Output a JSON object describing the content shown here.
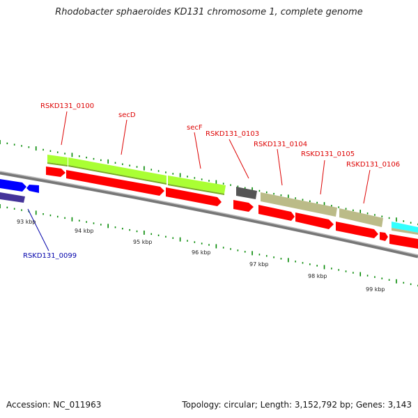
{
  "title": "Rhodobacter sphaeroides KD131 chromosome 1, complete genome",
  "accession": "Accession: NC_011963",
  "summary": "Topology: circular; Length: 3,152,792 bp; Genes: 3,143",
  "ticks": [
    {
      "label": "93 kbp"
    },
    {
      "label": "94 kbp"
    },
    {
      "label": "95 kbp"
    },
    {
      "label": "96 kbp"
    },
    {
      "label": "97 kbp"
    },
    {
      "label": "98 kbp"
    },
    {
      "label": "99 kbp"
    }
  ],
  "gene_labels": [
    {
      "id": "rskd131-0100",
      "text": "RSKD131_0100",
      "color": "#dd0000"
    },
    {
      "id": "secd",
      "text": "secD",
      "color": "#dd0000"
    },
    {
      "id": "secf",
      "text": "secF",
      "color": "#dd0000"
    },
    {
      "id": "rskd131-0103",
      "text": "RSKD131_0103",
      "color": "#dd0000"
    },
    {
      "id": "rskd131-0104",
      "text": "RSKD131_0104",
      "color": "#dd0000"
    },
    {
      "id": "rskd131-0105",
      "text": "RSKD131_0105",
      "color": "#dd0000"
    },
    {
      "id": "rskd131-0106",
      "text": "RSKD131_0106",
      "color": "#dd0000"
    },
    {
      "id": "rskd131-0099",
      "text": "RSKD131_0099",
      "color": "#0000aa"
    }
  ],
  "colors": {
    "backbone": "#888888",
    "cds_strand": "#ff0000",
    "secdf": "#aaff33",
    "misc": "#bbbb88",
    "trna": "#555555",
    "rskd0099": "#0000ff",
    "rskd0099_feature": "#443399",
    "rskd_next": "#33ffff",
    "tick": "#00aa00",
    "dots_outer": "#008800"
  }
}
